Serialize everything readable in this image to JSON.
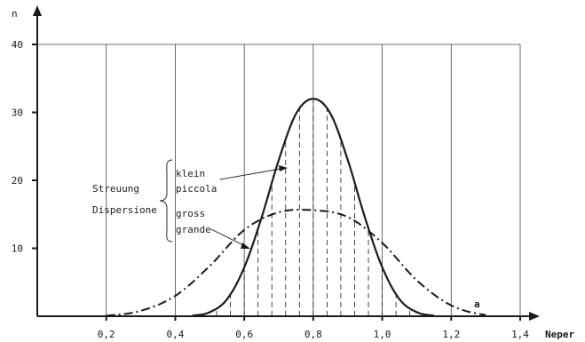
{
  "chart_data": {
    "type": "line",
    "xlabel": "Neper",
    "ylabel": "n",
    "xlim": [
      0.0,
      1.4
    ],
    "ylim": [
      0,
      40
    ],
    "x_ticks": [
      "0,2",
      "0,4",
      "0,6",
      "0,8",
      "1,0",
      "1,2",
      "1,4"
    ],
    "x_tick_values": [
      0.2,
      0.4,
      0.6,
      0.8,
      1.0,
      1.2,
      1.4
    ],
    "y_ticks": [
      "10",
      "20",
      "30",
      "40"
    ],
    "y_tick_values": [
      10,
      20,
      30,
      40
    ],
    "grid": "verticals at 0.2 spacing up to n = 40, closed top line",
    "series": [
      {
        "style": "solid",
        "x": [
          0.45,
          0.5,
          0.55,
          0.6,
          0.65,
          0.7,
          0.75,
          0.8,
          0.85,
          0.9,
          0.95,
          1.0,
          1.05,
          1.1,
          1.15
        ],
        "y": [
          0.1,
          0.6,
          2.5,
          7.2,
          14.5,
          23.0,
          29.8,
          32.0,
          29.8,
          23.0,
          14.5,
          7.2,
          2.5,
          0.6,
          0.1
        ]
      },
      {
        "style": "dash-dot",
        "label": "a",
        "x": [
          0.2,
          0.3,
          0.4,
          0.5,
          0.6,
          0.7,
          0.8,
          0.9,
          1.0,
          1.1,
          1.2,
          1.3
        ],
        "y": [
          0.1,
          0.8,
          3.0,
          7.4,
          12.7,
          15.3,
          15.6,
          14.6,
          10.8,
          5.3,
          1.6,
          0.2
        ]
      }
    ],
    "hatch_x": [
      0.52,
      0.56,
      0.6,
      0.64,
      0.68,
      0.72,
      0.76,
      0.8,
      0.84,
      0.88,
      0.92,
      0.96,
      1.0,
      1.04,
      1.08
    ],
    "annotations": {
      "group_line1": "Streuung",
      "group_line2": "Dispersione",
      "narrow_line1": "klein",
      "narrow_line2": "piccola",
      "wide_line1": "gross",
      "wide_line2": "grande",
      "curve_tag": "a"
    }
  }
}
